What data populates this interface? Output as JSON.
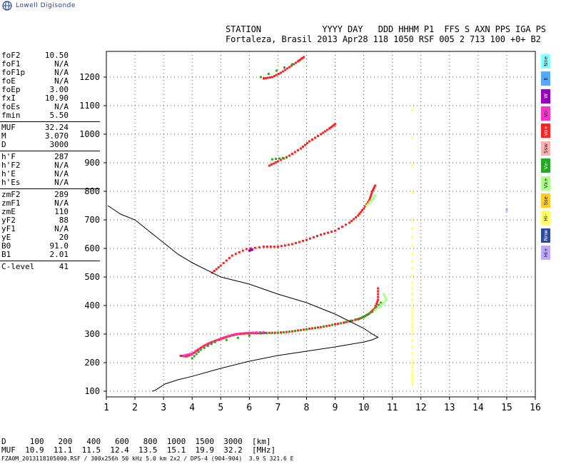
{
  "logo": {
    "text": "Lowell Digisonde"
  },
  "header": {
    "line1": "STATION            YYYY DAY   DDD HHHM P1  FFS S AXN PPS IGA PS",
    "line2": "Fortaleza, Brasil 2013 Apr28 118 1050 RSF 005 2 713 100 +0+ B2"
  },
  "params": [
    [
      [
        "foF2",
        "10.50"
      ],
      [
        "foF1",
        "N/A"
      ],
      [
        "foF1p",
        "N/A"
      ],
      [
        "foE",
        "N/A"
      ],
      [
        "foEp",
        "3.00"
      ],
      [
        "fxI",
        "10.90"
      ],
      [
        "foEs",
        "N/A"
      ],
      [
        "fmin",
        "5.50"
      ]
    ],
    [
      [
        "MUF",
        "32.24"
      ],
      [
        "M",
        "3.070"
      ],
      [
        "D",
        "3000"
      ]
    ],
    [
      [
        "h'F",
        "287"
      ],
      [
        "h'F2",
        "N/A"
      ],
      [
        "h'E",
        "N/A"
      ],
      [
        "h'Es",
        "N/A"
      ]
    ],
    [
      [
        "zmF2",
        "289"
      ],
      [
        "zmF1",
        "N/A"
      ],
      [
        "zmE",
        "110"
      ],
      [
        "yF2",
        "88"
      ],
      [
        "yF1",
        "N/A"
      ],
      [
        "yE",
        "20"
      ],
      [
        "B0",
        "91.0"
      ],
      [
        "B1",
        "2.01"
      ]
    ],
    [
      [
        "C-level",
        "41"
      ]
    ]
  ],
  "legend": [
    {
      "label": "Nne",
      "color": "#88ffff"
    },
    {
      "label": "E",
      "color": "#55aaff"
    },
    {
      "label": "W",
      "color": "#9a00c0"
    },
    {
      "label": "Vo-",
      "color": "#ff33cc"
    },
    {
      "label": "Vo+",
      "color": "#ff2020"
    },
    {
      "label": "Ssw",
      "color": "#ffb0b0"
    },
    {
      "label": "Vx-",
      "color": "#22aa22"
    },
    {
      "label": "Vx+",
      "color": "#aaff88"
    },
    {
      "label": "Sse",
      "color": "#ffcc22"
    },
    {
      "label": "Hi-",
      "color": "#ffff66"
    },
    {
      "label": "Nnw",
      "color": "#2a4aa0"
    },
    {
      "label": "Hi+",
      "color": "#c0a8ff"
    }
  ],
  "muf_table": {
    "row1": "D     100   200   400   600   800  1000  1500  3000  [km]",
    "row2": "MUF  10.9  11.1  11.5  12.4  13.5  15.1  19.9  32.2  [MHz]"
  },
  "file_line": "FZA0M_2013118105000.RSF / 300x256h 50 kHz 5.0 km 2x2 / DPS-4 (904-904)  3.9 S 321.6 E",
  "chart_data": {
    "type": "scatter",
    "xlim": [
      1,
      16
    ],
    "ylim": [
      80,
      1290
    ],
    "x_ticks": [
      1,
      2,
      3,
      4,
      5,
      6,
      7,
      8,
      9,
      10,
      11,
      12,
      13,
      14,
      15,
      16
    ],
    "y_ticks": [
      100,
      200,
      300,
      400,
      500,
      600,
      700,
      800,
      900,
      1000,
      1100,
      1200
    ],
    "grid": true,
    "series": [
      {
        "color": "#ff2020",
        "points": [
          [
            3.6,
            224
          ],
          [
            3.8,
            222
          ],
          [
            4.0,
            230
          ],
          [
            4.2,
            245
          ],
          [
            4.4,
            258
          ],
          [
            4.6,
            268
          ],
          [
            4.8,
            276
          ],
          [
            5.0,
            283
          ],
          [
            5.2,
            290
          ],
          [
            5.4,
            296
          ],
          [
            5.6,
            300
          ],
          [
            5.8,
            302
          ],
          [
            6.0,
            303
          ],
          [
            6.3,
            303
          ],
          [
            6.6,
            304
          ],
          [
            7.0,
            305
          ],
          [
            7.4,
            308
          ],
          [
            7.8,
            314
          ],
          [
            8.2,
            320
          ],
          [
            8.6,
            326
          ],
          [
            9.0,
            334
          ],
          [
            9.4,
            342
          ],
          [
            9.8,
            352
          ],
          [
            10.0,
            360
          ],
          [
            10.2,
            372
          ],
          [
            10.4,
            392
          ],
          [
            10.5,
            420
          ],
          [
            10.5,
            460
          ]
        ]
      },
      {
        "color": "#ff33cc",
        "points": [
          [
            3.7,
            225
          ],
          [
            4.0,
            232
          ],
          [
            4.5,
            262
          ],
          [
            5.0,
            285
          ],
          [
            5.5,
            300
          ],
          [
            6.0,
            305
          ],
          [
            6.5,
            307
          ]
        ]
      },
      {
        "color": "#22aa22",
        "points": [
          [
            4.0,
            215
          ],
          [
            4.3,
            245
          ],
          [
            4.8,
            272
          ],
          [
            6.4,
            302
          ],
          [
            7.2,
            306
          ],
          [
            8.0,
            316
          ],
          [
            9.2,
            338
          ],
          [
            9.9,
            356
          ],
          [
            10.3,
            378
          ],
          [
            10.6,
            410
          ]
        ]
      },
      {
        "color": "#aaff88",
        "points": [
          [
            10.4,
            384
          ],
          [
            10.6,
            400
          ],
          [
            10.8,
            420
          ],
          [
            10.7,
            440
          ]
        ]
      },
      {
        "color": "#ff2020",
        "points": [
          [
            4.7,
            515
          ],
          [
            5.0,
            540
          ],
          [
            5.4,
            575
          ],
          [
            5.9,
            598
          ],
          [
            6.5,
            606
          ],
          [
            7.0,
            606
          ],
          [
            7.5,
            615
          ],
          [
            8.0,
            630
          ],
          [
            8.5,
            648
          ],
          [
            9.0,
            662
          ],
          [
            9.5,
            690
          ],
          [
            9.8,
            715
          ],
          [
            10.0,
            740
          ],
          [
            10.2,
            770
          ],
          [
            10.3,
            800
          ],
          [
            10.4,
            820
          ]
        ]
      },
      {
        "color": "#9a00c0",
        "points": [
          [
            6.0,
            592
          ],
          [
            6.1,
            596
          ]
        ]
      },
      {
        "color": "#aaff88",
        "points": [
          [
            10.1,
            750
          ],
          [
            10.3,
            770
          ],
          [
            10.4,
            785
          ]
        ]
      },
      {
        "color": "#ff2020",
        "points": [
          [
            6.7,
            890
          ],
          [
            7.0,
            905
          ],
          [
            7.4,
            925
          ],
          [
            7.8,
            950
          ],
          [
            8.1,
            975
          ],
          [
            8.5,
            1000
          ],
          [
            8.8,
            1020
          ],
          [
            9.0,
            1035
          ]
        ]
      },
      {
        "color": "#22aa22",
        "points": [
          [
            6.8,
            912
          ],
          [
            7.3,
            918
          ]
        ]
      },
      {
        "color": "#ff2020",
        "points": [
          [
            6.5,
            1195
          ],
          [
            6.8,
            1200
          ],
          [
            7.1,
            1215
          ],
          [
            7.4,
            1235
          ],
          [
            7.7,
            1255
          ],
          [
            7.9,
            1270
          ]
        ]
      },
      {
        "color": "#22aa22",
        "points": [
          [
            6.4,
            1200
          ],
          [
            7.5,
            1245
          ]
        ]
      },
      {
        "color": "#ffff66",
        "points": [
          [
            11.7,
            1085
          ],
          [
            11.7,
            700
          ],
          [
            11.7,
            580
          ],
          [
            11.7,
            480
          ],
          [
            11.7,
            400
          ],
          [
            11.7,
            350
          ],
          [
            11.7,
            300
          ],
          [
            11.7,
            210
          ],
          [
            11.7,
            160
          ],
          [
            11.7,
            125
          ]
        ]
      },
      {
        "color": "#c0a8ff",
        "points": [
          [
            15.0,
            738
          ],
          [
            15.0,
            733
          ]
        ]
      }
    ],
    "profile": [
      [
        2.6,
        100
      ],
      [
        2.7,
        103
      ],
      [
        2.85,
        112
      ],
      [
        3.05,
        125
      ],
      [
        3.5,
        140
      ],
      [
        4.0,
        152
      ],
      [
        5.0,
        180
      ],
      [
        6.0,
        205
      ],
      [
        7.0,
        225
      ],
      [
        8.0,
        240
      ],
      [
        9.0,
        255
      ],
      [
        10.0,
        272
      ],
      [
        10.3,
        280
      ],
      [
        10.5,
        289
      ],
      [
        10.3,
        300
      ],
      [
        10.0,
        320
      ],
      [
        9.5,
        345
      ],
      [
        9.0,
        370
      ],
      [
        8.0,
        410
      ],
      [
        7.0,
        440
      ],
      [
        6.0,
        475
      ],
      [
        5.0,
        500
      ],
      [
        4.0,
        550
      ],
      [
        3.5,
        580
      ],
      [
        3.0,
        620
      ],
      [
        2.5,
        660
      ],
      [
        2.0,
        700
      ],
      [
        1.5,
        720
      ],
      [
        1.2,
        740
      ],
      [
        1.05,
        750
      ]
    ]
  }
}
